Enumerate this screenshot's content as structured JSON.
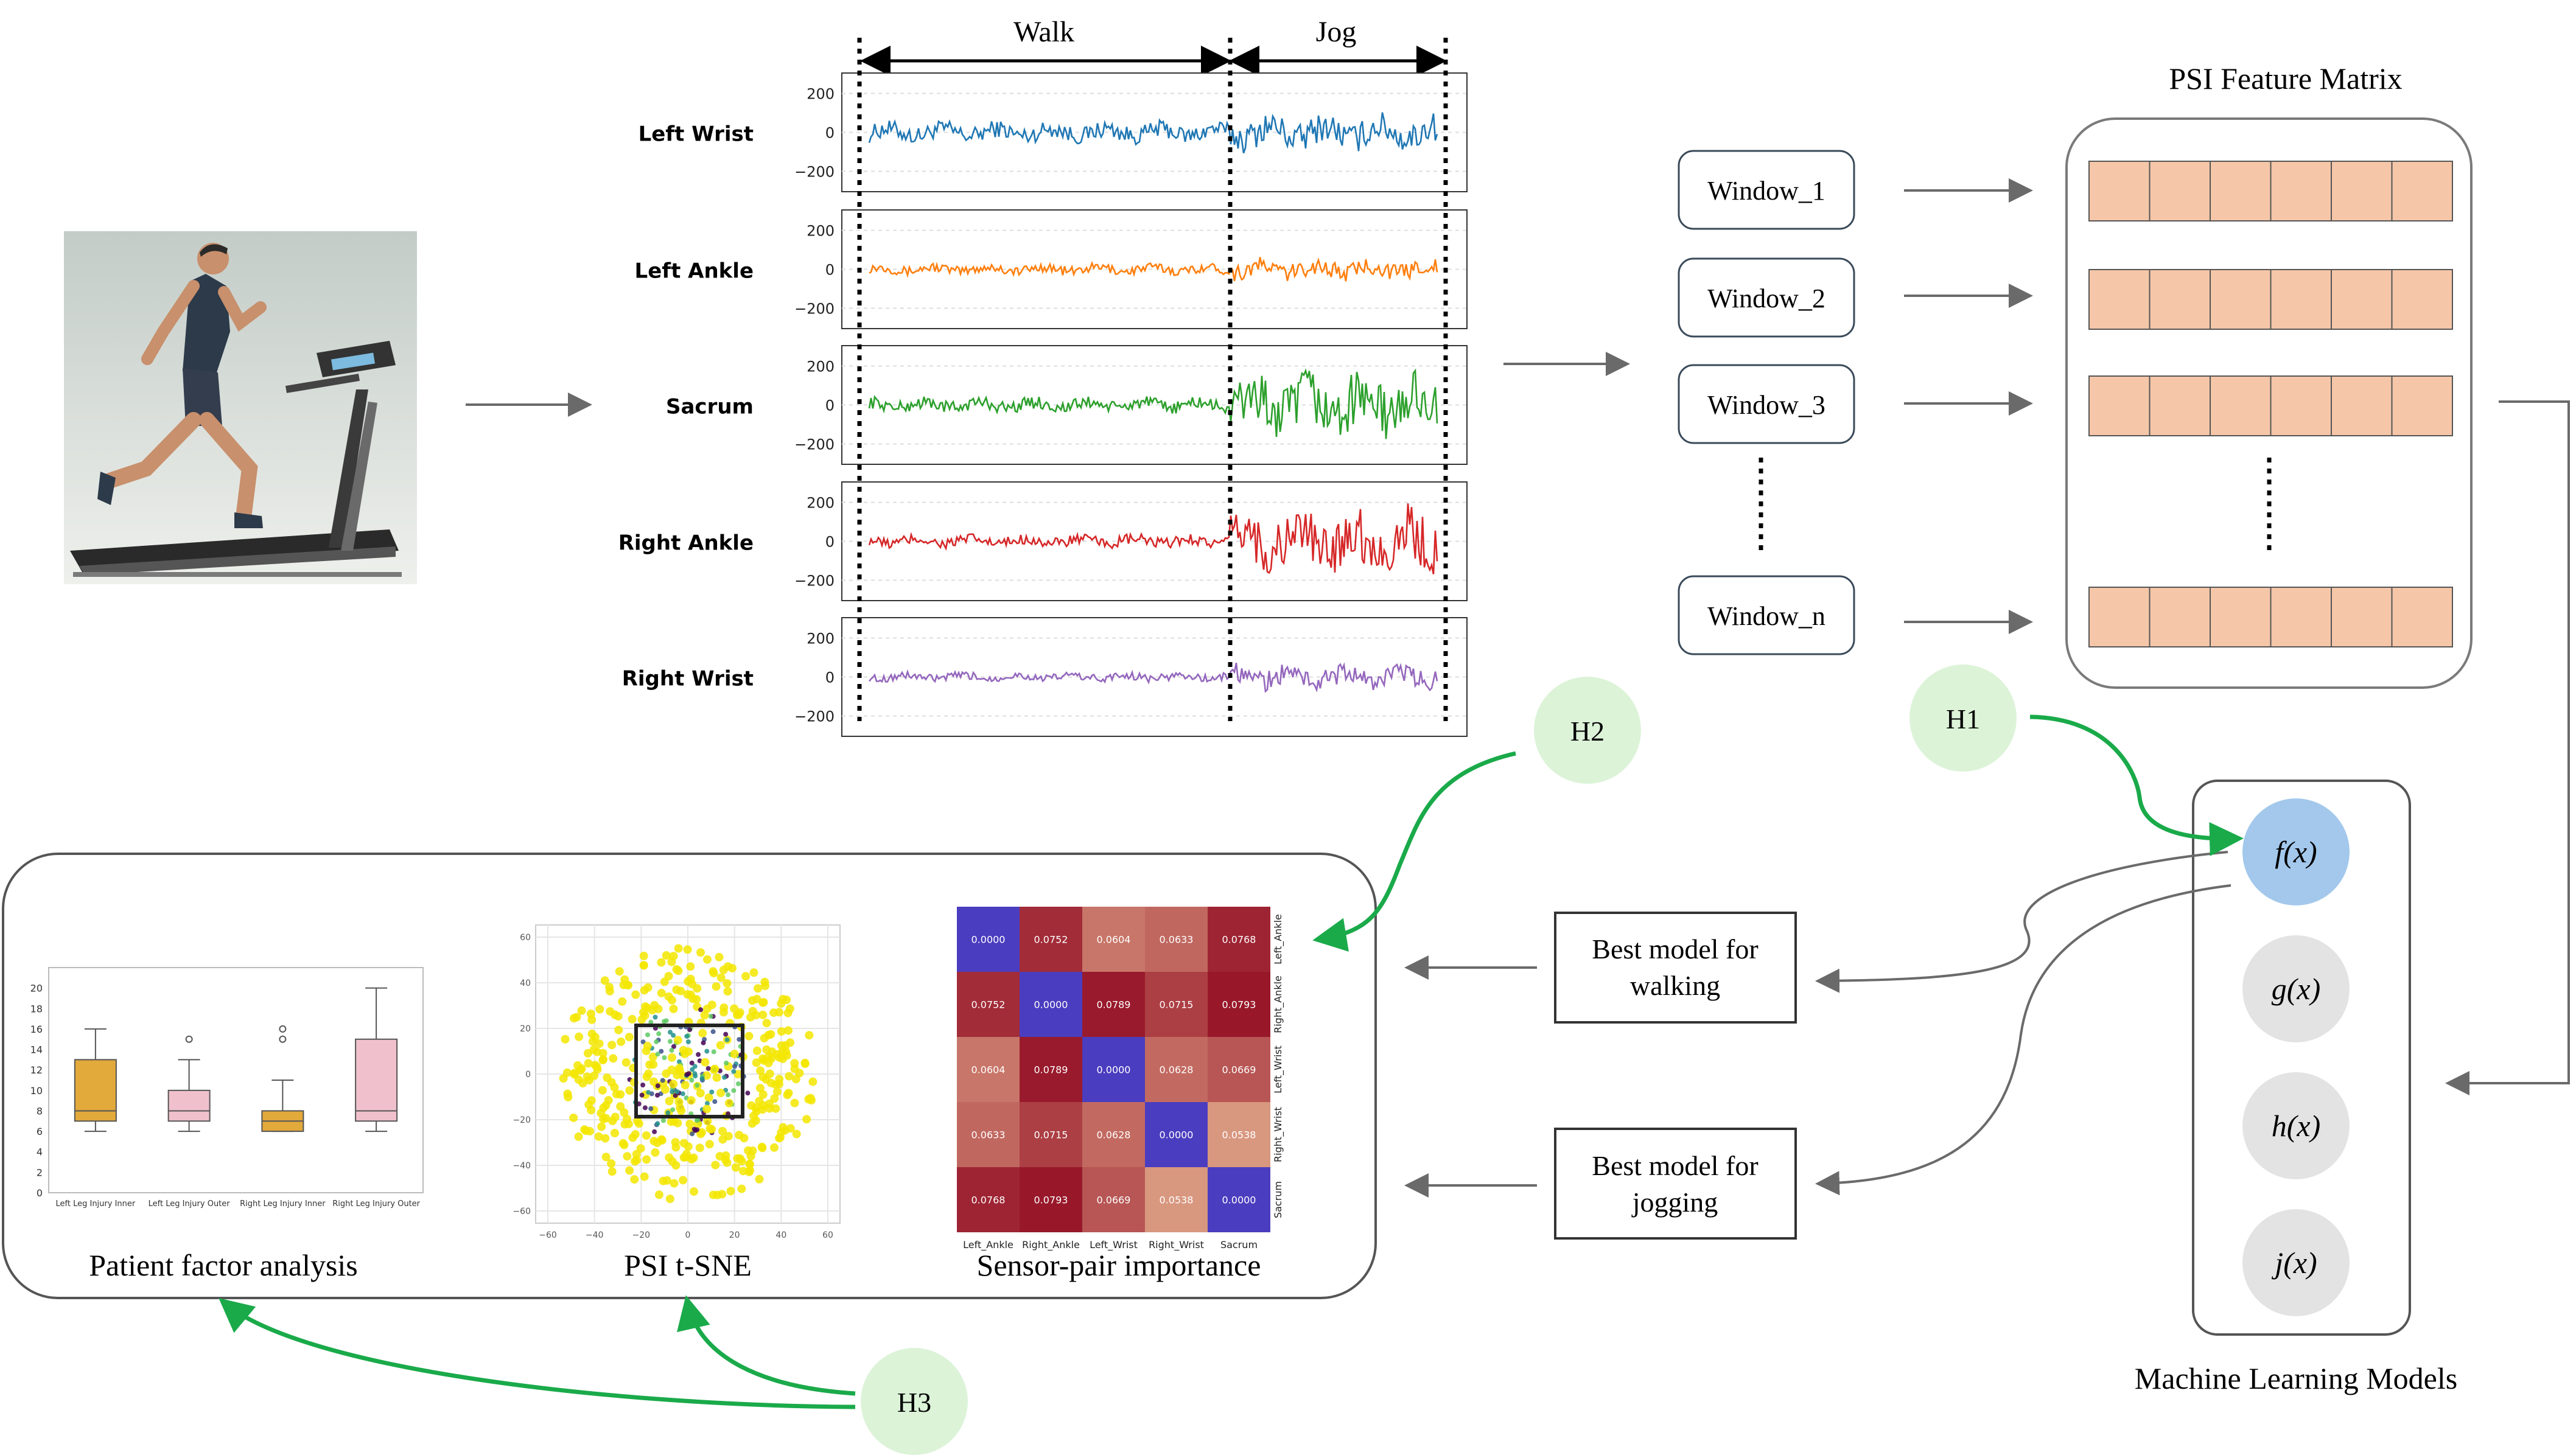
{
  "signals": {
    "phases": {
      "walk": "Walk",
      "jog": "Jog"
    },
    "tick_labels": [
      "200",
      "0",
      "−200"
    ],
    "channels": [
      {
        "label": "Left Wrist",
        "color": "#1f77b4",
        "walk_amp": 55,
        "jog_amp": 95
      },
      {
        "label": "Left Ankle",
        "color": "#ff7f0e",
        "walk_amp": 30,
        "jog_amp": 55
      },
      {
        "label": "Sacrum",
        "color": "#2ca02c",
        "walk_amp": 40,
        "jog_amp": 170
      },
      {
        "label": "Right Ankle",
        "color": "#d62728",
        "walk_amp": 35,
        "jog_amp": 170
      },
      {
        "label": "Right Wrist",
        "color": "#9467bd",
        "walk_amp": 25,
        "jog_amp": 65
      }
    ]
  },
  "windows": [
    "Window_1",
    "Window_2",
    "Window_3",
    "Window_n"
  ],
  "feature_matrix": {
    "title": "PSI Feature Matrix",
    "cell_color": "#f5c6a8"
  },
  "hypotheses": {
    "h1": "H1",
    "h2": "H2",
    "h3": "H3",
    "color": "#dcf3d8",
    "arrow_color": "#1aaa4a"
  },
  "models": {
    "label": "Machine Learning Models",
    "items": [
      "f(x)",
      "g(x)",
      "h(x)",
      "j(x)"
    ],
    "active_color": "#a3c8ec",
    "inactive_color": "#e3e3e3"
  },
  "best_models": {
    "walking": {
      "line1": "Best model for",
      "line2": "walking"
    },
    "jogging": {
      "line1": "Best model for",
      "line2": "jogging"
    }
  },
  "analysis": {
    "patient_factor": "Patient factor analysis",
    "tsne": "PSI t-SNE",
    "sensor_pair": "Sensor-pair importance"
  },
  "boxplot": {
    "yticks": [
      "12",
      "10",
      "8",
      "6",
      "4",
      "2",
      "0"
    ],
    "yticks_full": [
      "0",
      "2",
      "4",
      "6",
      "8",
      "10",
      "12",
      "14",
      "16",
      "18",
      "20"
    ],
    "categories": [
      "Left Leg Injury Inner",
      "Left Leg Injury Outer",
      "Right Leg Injury Inner",
      "Right Leg Injury Outer"
    ],
    "boxes": [
      {
        "q1": 7,
        "med": 8,
        "q3": 13,
        "lo": 6,
        "hi": 16,
        "color": "#e2a93b",
        "outliers": []
      },
      {
        "q1": 7,
        "med": 8,
        "q3": 10,
        "lo": 6,
        "hi": 13,
        "color": "#f0c1cc",
        "outliers": [
          15
        ]
      },
      {
        "q1": 6,
        "med": 7,
        "q3": 8,
        "lo": 6,
        "hi": 11,
        "color": "#e2a93b",
        "outliers": [
          15,
          16
        ]
      },
      {
        "q1": 7,
        "med": 8,
        "q3": 15,
        "lo": 6,
        "hi": 20,
        "color": "#f0c1cc",
        "outliers": []
      }
    ]
  },
  "tsne_axes": {
    "xticks": [
      "−60",
      "−40",
      "−20",
      "0",
      "20",
      "40",
      "60"
    ],
    "yticks": [
      "60",
      "40",
      "20",
      "0",
      "−20",
      "−40",
      "−60"
    ]
  },
  "heatmap": {
    "labels": [
      "Left_Ankle",
      "Right_Ankle",
      "Left_Wrist",
      "Right_Wrist",
      "Sacrum"
    ],
    "values": [
      [
        "0.0000",
        "0.0752",
        "0.0604",
        "0.0633",
        "0.0768"
      ],
      [
        "0.0752",
        "0.0000",
        "0.0789",
        "0.0715",
        "0.0793"
      ],
      [
        "0.0604",
        "0.0789",
        "0.0000",
        "0.0628",
        "0.0669"
      ],
      [
        "0.0633",
        "0.0715",
        "0.0628",
        "0.0000",
        "0.0538"
      ],
      [
        "0.0768",
        "0.0793",
        "0.0669",
        "0.0538",
        "0.0000"
      ]
    ]
  }
}
